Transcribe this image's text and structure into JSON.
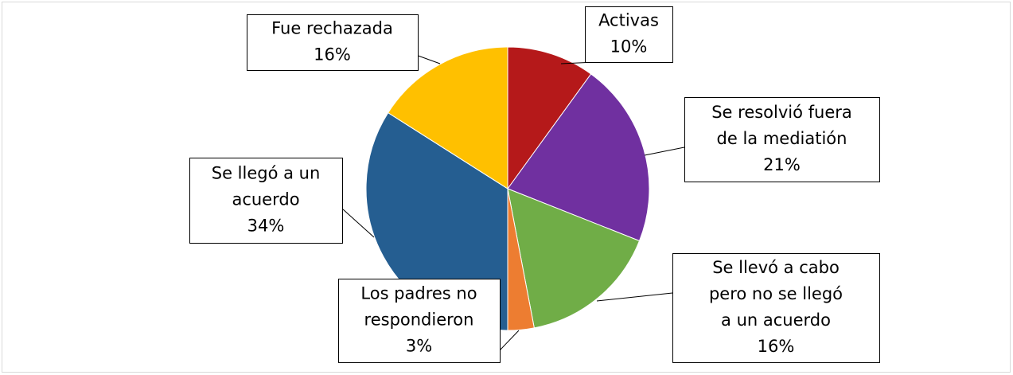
{
  "chart_data": {
    "type": "pie",
    "categories": [
      [
        "Activas"
      ],
      [
        "Se resolvió fuera",
        "de la mediatión"
      ],
      [
        "Se llevó a cabo",
        "pero no se llegó",
        "a un acuerdo"
      ],
      [
        "Los padres no",
        "respondieron"
      ],
      [
        "Se llegó a un",
        "acuerdo"
      ],
      [
        "Fue rechazada"
      ]
    ],
    "values": [
      10,
      21,
      16,
      3,
      34,
      16
    ],
    "value_labels": [
      "10%",
      "21%",
      "16%",
      "3%",
      "34%",
      "16%"
    ],
    "colors": [
      "#B5191A",
      "#7030A0",
      "#70AD47",
      "#ED7D31",
      "#255E91",
      "#FFC000"
    ]
  }
}
